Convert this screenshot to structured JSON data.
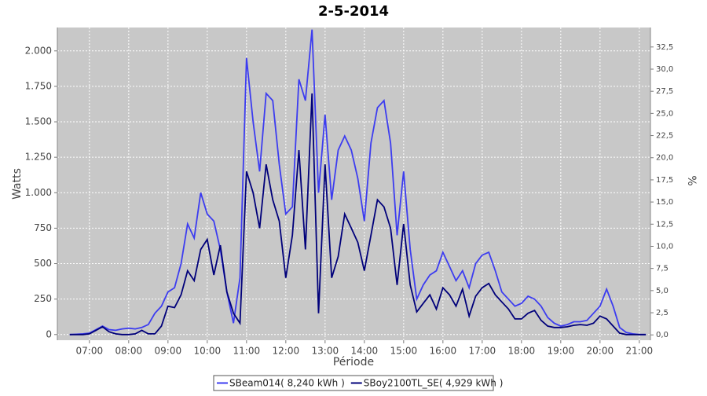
{
  "chart_data": {
    "type": "line",
    "title": "2-5-2014",
    "x_label": "Période",
    "y_label": "Watts",
    "y2_label": "%",
    "x": [
      "06:30",
      "06:40",
      "06:50",
      "07:00",
      "07:10",
      "07:20",
      "07:30",
      "07:40",
      "07:50",
      "08:00",
      "08:10",
      "08:20",
      "08:30",
      "08:40",
      "08:50",
      "09:00",
      "09:10",
      "09:20",
      "09:30",
      "09:40",
      "09:50",
      "10:00",
      "10:10",
      "10:20",
      "10:30",
      "10:40",
      "10:50",
      "11:00",
      "11:10",
      "11:20",
      "11:30",
      "11:40",
      "11:50",
      "12:00",
      "12:10",
      "12:20",
      "12:30",
      "12:40",
      "12:50",
      "13:00",
      "13:10",
      "13:20",
      "13:30",
      "13:40",
      "13:50",
      "14:00",
      "14:10",
      "14:20",
      "14:30",
      "14:40",
      "14:50",
      "15:00",
      "15:10",
      "15:20",
      "15:30",
      "15:40",
      "15:50",
      "16:00",
      "16:10",
      "16:20",
      "16:30",
      "16:40",
      "16:50",
      "17:00",
      "17:10",
      "17:20",
      "17:30",
      "17:40",
      "17:50",
      "18:00",
      "18:10",
      "18:20",
      "18:30",
      "18:40",
      "18:50",
      "19:00",
      "19:10",
      "19:20",
      "19:30",
      "19:40",
      "19:50",
      "20:00",
      "20:10",
      "20:20",
      "20:30",
      "20:40",
      "20:50",
      "21:00",
      "21:10"
    ],
    "xlim": [
      "06:11",
      "21:17"
    ],
    "xticks": [
      "07:00",
      "08:00",
      "09:00",
      "10:00",
      "11:00",
      "12:00",
      "13:00",
      "14:00",
      "15:00",
      "16:00",
      "17:00",
      "18:00",
      "19:00",
      "20:00",
      "21:00"
    ],
    "ylim": [
      -40,
      2165
    ],
    "yticks": [
      0,
      250,
      500,
      750,
      {
        "value": 1000,
        "label": "1.000"
      },
      {
        "value": 1250,
        "label": "1.250"
      },
      {
        "value": 1500,
        "label": "1.500"
      },
      {
        "value": 1750,
        "label": "1.750"
      },
      {
        "value": 2000,
        "label": "2.000"
      }
    ],
    "y2lim": [
      -0.6,
      34.7
    ],
    "y2ticks": [
      {
        "value": 0,
        "label": "0,0"
      },
      {
        "value": 2.5,
        "label": "2,5"
      },
      {
        "value": 5,
        "label": "5,0"
      },
      {
        "value": 7.5,
        "label": "7,5"
      },
      {
        "value": 10,
        "label": "10,0"
      },
      {
        "value": 12.5,
        "label": "12,5"
      },
      {
        "value": 15,
        "label": "15,0"
      },
      {
        "value": 17.5,
        "label": "17,5"
      },
      {
        "value": 20,
        "label": "20,0"
      },
      {
        "value": 22.5,
        "label": "22,5"
      },
      {
        "value": 25,
        "label": "25,0"
      },
      {
        "value": 27.5,
        "label": "27,5"
      },
      {
        "value": 30,
        "label": "30,0"
      },
      {
        "value": 32.5,
        "label": "32,5"
      }
    ],
    "grid": true,
    "series": [
      {
        "name": "SBeam014( 8,240 kWh )",
        "color": "#3c3cf0",
        "values": [
          0,
          2,
          5,
          10,
          35,
          60,
          35,
          30,
          40,
          45,
          40,
          50,
          70,
          150,
          200,
          300,
          330,
          500,
          780,
          680,
          1000,
          850,
          800,
          600,
          300,
          80,
          400,
          1950,
          1500,
          1150,
          1700,
          1650,
          1200,
          850,
          900,
          1800,
          1650,
          2150,
          1000,
          1550,
          950,
          1300,
          1400,
          1300,
          1100,
          800,
          1350,
          1600,
          1650,
          1350,
          700,
          1150,
          600,
          250,
          350,
          420,
          450,
          580,
          480,
          380,
          450,
          330,
          500,
          560,
          580,
          450,
          300,
          250,
          200,
          220,
          270,
          250,
          200,
          120,
          80,
          60,
          70,
          90,
          90,
          100,
          150,
          200,
          320,
          200,
          50,
          15,
          5,
          0,
          0
        ]
      },
      {
        "name": "SBoy2100TL_SE( 4,929 kWh )",
        "color": "#00007a",
        "values": [
          0,
          0,
          0,
          5,
          30,
          55,
          20,
          5,
          0,
          0,
          5,
          30,
          5,
          5,
          60,
          200,
          190,
          280,
          450,
          380,
          600,
          670,
          420,
          630,
          300,
          150,
          80,
          1150,
          1000,
          750,
          1200,
          950,
          800,
          400,
          700,
          1300,
          600,
          1700,
          150,
          1200,
          400,
          550,
          850,
          750,
          650,
          450,
          700,
          950,
          900,
          750,
          350,
          780,
          350,
          160,
          220,
          280,
          180,
          330,
          280,
          200,
          320,
          130,
          270,
          330,
          360,
          280,
          230,
          180,
          110,
          110,
          150,
          170,
          100,
          60,
          50,
          50,
          55,
          65,
          70,
          65,
          80,
          130,
          110,
          60,
          10,
          0,
          0,
          0,
          0
        ]
      }
    ]
  }
}
